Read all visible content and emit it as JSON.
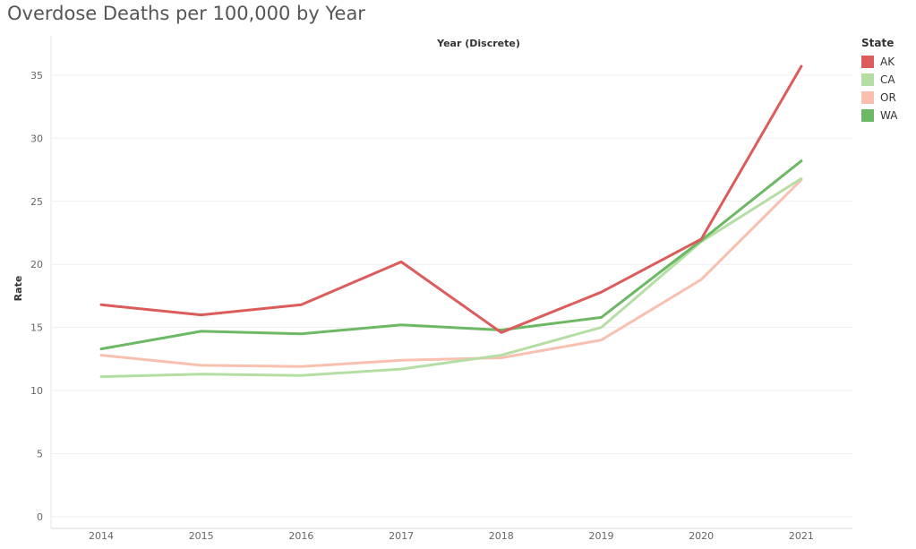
{
  "chart_data": {
    "type": "line",
    "title": "Overdose Deaths per 100,000 by Year",
    "xlabel": "Year (Discrete)",
    "ylabel": "Rate",
    "categories": [
      "2014",
      "2015",
      "2016",
      "2017",
      "2018",
      "2019",
      "2020",
      "2021"
    ],
    "yticks": [
      0,
      5,
      10,
      15,
      20,
      25,
      30,
      35
    ],
    "ylim": [
      0,
      37
    ],
    "grid": true,
    "legend_title": "State",
    "legend_position": "right",
    "series": [
      {
        "name": "AK",
        "color": "#dc5b5b",
        "values": [
          16.8,
          16.0,
          16.8,
          20.2,
          14.6,
          17.8,
          22.0,
          35.7
        ]
      },
      {
        "name": "CA",
        "color": "#b5dea5",
        "values": [
          11.1,
          11.3,
          11.2,
          11.7,
          12.8,
          15.0,
          21.8,
          26.8
        ]
      },
      {
        "name": "OR",
        "color": "#f9c0b0",
        "values": [
          12.8,
          12.0,
          11.9,
          12.4,
          12.6,
          14.0,
          18.8,
          26.7
        ]
      },
      {
        "name": "WA",
        "color": "#6db865",
        "values": [
          13.3,
          14.7,
          14.5,
          15.2,
          14.8,
          15.8,
          21.9,
          28.2
        ]
      }
    ]
  }
}
